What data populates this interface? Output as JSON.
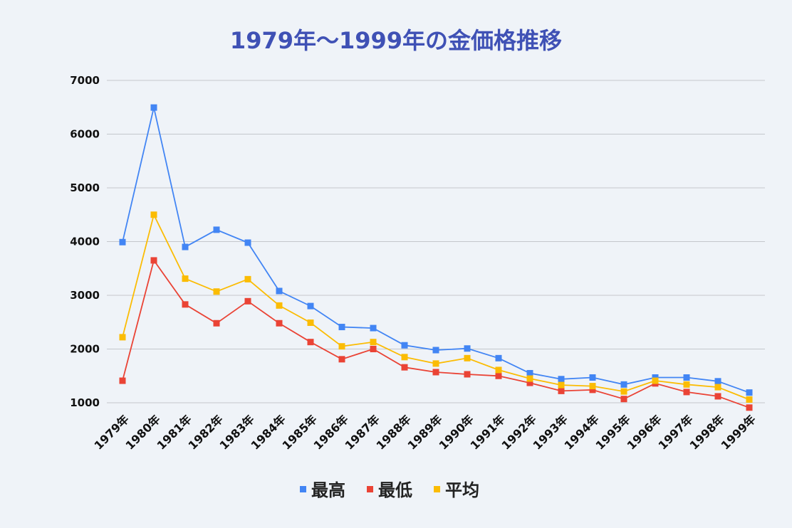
{
  "chart_data": {
    "type": "line",
    "title": "1979年〜1999年の金価格推移",
    "categories": [
      "1979年",
      "1980年",
      "1981年",
      "1982年",
      "1983年",
      "1984年",
      "1985年",
      "1986年",
      "1987年",
      "1988年",
      "1989年",
      "1990年",
      "1991年",
      "1992年",
      "1993年",
      "1994年",
      "1995年",
      "1996年",
      "1997年",
      "1998年",
      "1999年"
    ],
    "series": [
      {
        "name": "最高",
        "color": "#4285f4",
        "values": [
          3990,
          6495,
          3900,
          4220,
          3980,
          3080,
          2800,
          2410,
          2390,
          2070,
          1980,
          2010,
          1830,
          1550,
          1440,
          1470,
          1340,
          1470,
          1470,
          1400,
          1190
        ]
      },
      {
        "name": "最低",
        "color": "#ea4335",
        "values": [
          1410,
          3650,
          2830,
          2480,
          2890,
          2480,
          2130,
          1810,
          2000,
          1660,
          1570,
          1530,
          1500,
          1370,
          1220,
          1240,
          1070,
          1360,
          1200,
          1120,
          910
        ]
      },
      {
        "name": "平均",
        "color": "#fbbc04",
        "values": [
          2220,
          4500,
          3310,
          3070,
          3300,
          2810,
          2490,
          2050,
          2130,
          1850,
          1730,
          1830,
          1610,
          1450,
          1330,
          1310,
          1210,
          1410,
          1340,
          1290,
          1060
        ]
      }
    ],
    "y_ticks": [
      1000,
      2000,
      3000,
      4000,
      5000,
      6000,
      7000
    ],
    "ylim": [
      1000,
      7000
    ],
    "grid": true,
    "legend_position": "bottom",
    "title_color": "#3f51b5",
    "gridline_color": "#c4c7cc"
  }
}
